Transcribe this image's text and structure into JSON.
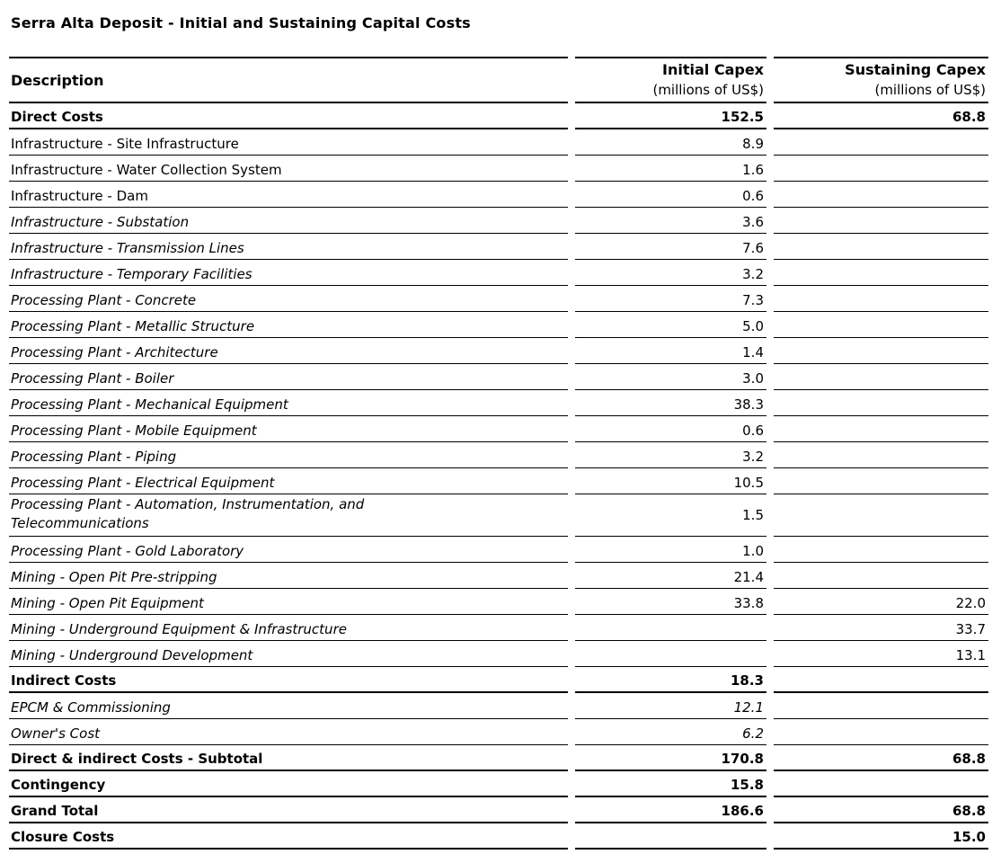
{
  "title": "Serra Alta Deposit - Initial and Sustaining Capital Costs",
  "colors": {
    "text": "#000000",
    "rule": "#000000",
    "background": "#ffffff"
  },
  "table": {
    "columns": [
      {
        "label": "Description",
        "sublabel": ""
      },
      {
        "label": "Initial Capex",
        "sublabel": "(millions of US$)"
      },
      {
        "label": "Sustaining Capex",
        "sublabel": "(millions of US$)"
      }
    ],
    "rows": [
      {
        "label": "Direct Costs",
        "initial": "152.5",
        "sustaining": "68.8",
        "label_style": "bold",
        "value_style": "bold"
      },
      {
        "label": "Infrastructure - Site Infrastructure",
        "initial": "8.9",
        "sustaining": "",
        "label_style": "regular",
        "value_style": "regular"
      },
      {
        "label": "Infrastructure - Water Collection System",
        "initial": "1.6",
        "sustaining": "",
        "label_style": "regular",
        "value_style": "regular"
      },
      {
        "label": "Infrastructure - Dam",
        "initial": "0.6",
        "sustaining": "",
        "label_style": "regular",
        "value_style": "regular"
      },
      {
        "label": "Infrastructure - Substation",
        "initial": "3.6",
        "sustaining": "",
        "label_style": "italic",
        "value_style": "regular"
      },
      {
        "label": "Infrastructure - Transmission Lines",
        "initial": "7.6",
        "sustaining": "",
        "label_style": "italic",
        "value_style": "regular"
      },
      {
        "label": "Infrastructure - Temporary Facilities",
        "initial": "3.2",
        "sustaining": "",
        "label_style": "italic",
        "value_style": "regular"
      },
      {
        "label": "Processing Plant - Concrete",
        "initial": "7.3",
        "sustaining": "",
        "label_style": "italic",
        "value_style": "regular"
      },
      {
        "label": "Processing Plant - Metallic Structure",
        "initial": "5.0",
        "sustaining": "",
        "label_style": "italic",
        "value_style": "regular"
      },
      {
        "label": "Processing Plant - Architecture",
        "initial": "1.4",
        "sustaining": "",
        "label_style": "italic",
        "value_style": "regular"
      },
      {
        "label": "Processing Plant - Boiler",
        "initial": "3.0",
        "sustaining": "",
        "label_style": "italic",
        "value_style": "regular"
      },
      {
        "label": "Processing Plant - Mechanical Equipment",
        "initial": "38.3",
        "sustaining": "",
        "label_style": "italic",
        "value_style": "regular"
      },
      {
        "label": "Processing Plant - Mobile Equipment",
        "initial": "0.6",
        "sustaining": "",
        "label_style": "italic",
        "value_style": "regular"
      },
      {
        "label": "Processing Plant - Piping",
        "initial": "3.2",
        "sustaining": "",
        "label_style": "italic",
        "value_style": "regular"
      },
      {
        "label": "Processing Plant - Electrical Equipment",
        "initial": "10.5",
        "sustaining": "",
        "label_style": "italic",
        "value_style": "regular"
      },
      {
        "label": "Processing Plant - Automation, Instrumentation, and Telecommunications",
        "initial": "1.5",
        "sustaining": "",
        "label_style": "italic",
        "value_style": "regular",
        "tall": true
      },
      {
        "label": "Processing Plant - Gold Laboratory",
        "initial": "1.0",
        "sustaining": "",
        "label_style": "italic",
        "value_style": "regular"
      },
      {
        "label": "Mining - Open Pit Pre-stripping",
        "initial": "21.4",
        "sustaining": "",
        "label_style": "italic",
        "value_style": "regular"
      },
      {
        "label": "Mining - Open Pit Equipment",
        "initial": "33.8",
        "sustaining": "22.0",
        "label_style": "italic",
        "value_style": "regular"
      },
      {
        "label": "Mining - Underground Equipment & Infrastructure",
        "initial": "",
        "sustaining": "33.7",
        "label_style": "italic",
        "value_style": "regular"
      },
      {
        "label": "Mining - Underground Development",
        "initial": "",
        "sustaining": "13.1",
        "label_style": "italic",
        "value_style": "regular"
      },
      {
        "label": "Indirect Costs",
        "initial": "18.3",
        "sustaining": "",
        "label_style": "bold",
        "value_style": "bold"
      },
      {
        "label": "EPCM & Commissioning",
        "initial": "12.1",
        "sustaining": "",
        "label_style": "italic",
        "value_style": "italic"
      },
      {
        "label": "Owner's Cost",
        "initial": "6.2",
        "sustaining": "",
        "label_style": "italic",
        "value_style": "italic"
      },
      {
        "label": "Direct & indirect Costs - Subtotal",
        "initial": "170.8",
        "sustaining": "68.8",
        "label_style": "bold",
        "value_style": "bold"
      },
      {
        "label": "Contingency",
        "initial": "15.8",
        "sustaining": "",
        "label_style": "bold",
        "value_style": "bold"
      },
      {
        "label": "Grand Total",
        "initial": "186.6",
        "sustaining": "68.8",
        "label_style": "bold",
        "value_style": "bold"
      },
      {
        "label": "Closure Costs",
        "initial": "",
        "sustaining": "15.0",
        "label_style": "bold",
        "value_style": "bold"
      }
    ]
  }
}
